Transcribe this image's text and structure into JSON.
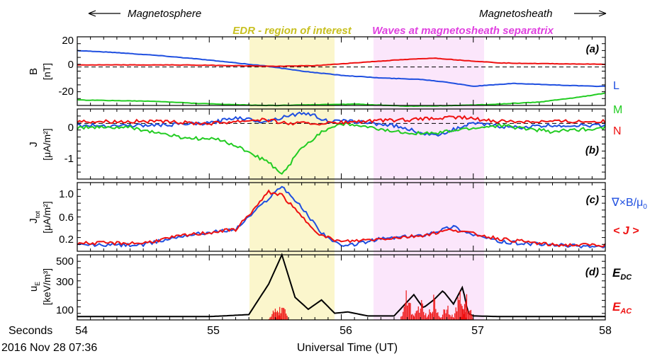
{
  "header": {
    "left_label": "Magnetosphere",
    "right_label": "Magnetosheath",
    "edr_label": "EDR - region of interest",
    "waves_label": "Waves at magnetosheath separatrix"
  },
  "colors": {
    "L": "#1f4fe0",
    "M": "#22cc22",
    "N": "#ee1111",
    "edr_fill": "#fbf6cc",
    "edr_text": "#c8c020",
    "waves_fill": "#fbe6fb",
    "waves_text": "#e040e0",
    "black": "#000000"
  },
  "panels": [
    {
      "id": "a",
      "tag": "(a)",
      "ylabel": "B",
      "yunits": "[nT]",
      "ticks": [
        "20",
        "0",
        "-20"
      ]
    },
    {
      "id": "b",
      "tag": "(b)",
      "ylabel": "J",
      "yunits": "[μA/m²]",
      "ticks": [
        "0",
        "-1"
      ]
    },
    {
      "id": "c",
      "tag": "(c)",
      "ylabel": "J",
      "ylabel_sub": "tot",
      "yunits": "[μA/m²]",
      "ticks": [
        "1.0",
        "0.6",
        "0.2"
      ]
    },
    {
      "id": "d",
      "tag": "(d)",
      "ylabel": "u",
      "ylabel_sub": "E",
      "yunits": "[keV/m³]",
      "ticks": [
        "500",
        "300",
        "100"
      ]
    }
  ],
  "legend": {
    "a": [
      "L",
      "M",
      "N"
    ],
    "c_curl": "∇×B/μ",
    "c_curl_sub": "0",
    "c_avg": "< J >",
    "d_dc": "E",
    "d_dc_sub": "DC",
    "d_ac": "E",
    "d_ac_sub": "AC"
  },
  "xaxis": {
    "seconds_label": "Seconds",
    "ticks": [
      "54",
      "55",
      "56",
      "57",
      "58"
    ],
    "date_label": "2016 Nov 28 07:36",
    "title": "Universal Time (UT)"
  },
  "chart_data": [
    {
      "type": "line",
      "panel": "a",
      "x_range": [
        54,
        58
      ],
      "ylim": [
        -28,
        22
      ],
      "series": [
        {
          "name": "L",
          "x": [
            54,
            54.3,
            54.6,
            54.9,
            55.2,
            55.45,
            55.7,
            56.0,
            56.3,
            56.6,
            56.8,
            57.0,
            57.3,
            57.6,
            57.9,
            58
          ],
          "y": [
            12,
            10.5,
            8.5,
            6,
            3,
            0.5,
            -3,
            -6,
            -8,
            -9,
            -11,
            -14,
            -12,
            -13,
            -14,
            -14
          ]
        },
        {
          "name": "M",
          "x": [
            54,
            54.3,
            54.6,
            54.9,
            55.2,
            55.5,
            55.8,
            56.1,
            56.5,
            56.9,
            57.2,
            57.5,
            57.8,
            58
          ],
          "y": [
            -24,
            -24.5,
            -25,
            -26.5,
            -27.5,
            -28,
            -27.5,
            -27,
            -28.5,
            -28,
            -27,
            -25.5,
            -22,
            -19
          ]
        },
        {
          "name": "N",
          "x": [
            54,
            54.4,
            54.8,
            55.2,
            55.5,
            55.8,
            56.1,
            56.4,
            56.7,
            56.9,
            57.2,
            57.5,
            58
          ],
          "y": [
            1.5,
            1.5,
            1.5,
            1.0,
            0.5,
            1,
            3,
            5,
            6.5,
            5,
            3,
            2.5,
            2
          ]
        }
      ],
      "reference_line": 0
    },
    {
      "type": "line",
      "panel": "b",
      "x_range": [
        54,
        58
      ],
      "ylim": [
        -1.35,
        0.35
      ],
      "series": [
        {
          "name": "L",
          "x": [
            54,
            54.5,
            55.0,
            55.2,
            55.4,
            55.5,
            55.6,
            55.75,
            55.9,
            56.1,
            56.4,
            56.7,
            57.0,
            57.3,
            57.6,
            58
          ],
          "y": [
            -0.05,
            -0.05,
            0.0,
            0.15,
            0.05,
            0.1,
            0.2,
            0.25,
            0.05,
            0.05,
            -0.05,
            -0.3,
            0.0,
            -0.1,
            -0.05,
            -0.05
          ]
        },
        {
          "name": "M",
          "x": [
            54,
            54.4,
            54.8,
            55.1,
            55.3,
            55.45,
            55.55,
            55.7,
            55.85,
            56.0,
            56.4,
            56.7,
            56.9,
            57.2,
            57.6,
            58
          ],
          "y": [
            -0.1,
            -0.1,
            -0.35,
            -0.4,
            -0.7,
            -0.95,
            -1.25,
            -0.6,
            -0.2,
            0.0,
            -0.2,
            -0.25,
            -0.15,
            -0.05,
            -0.2,
            -0.1
          ]
        },
        {
          "name": "N",
          "x": [
            54,
            54.5,
            55.0,
            55.4,
            55.6,
            55.9,
            56.2,
            56.6,
            56.9,
            57.2,
            57.6,
            58
          ],
          "y": [
            0.05,
            0.05,
            0.0,
            0.1,
            0.0,
            0.0,
            0.05,
            0.1,
            0.15,
            0.05,
            0.05,
            0.05
          ]
        }
      ],
      "reference_line": 0
    },
    {
      "type": "line",
      "panel": "c",
      "x_range": [
        54,
        58
      ],
      "ylim": [
        0.05,
        1.15
      ],
      "series": [
        {
          "name": "∇×B/μ0",
          "x": [
            54,
            54.5,
            54.8,
            55.0,
            55.2,
            55.35,
            55.45,
            55.55,
            55.7,
            55.85,
            56.0,
            56.3,
            56.6,
            56.85,
            56.95,
            57.2,
            57.6,
            58
          ],
          "y": [
            0.15,
            0.15,
            0.3,
            0.35,
            0.4,
            0.7,
            0.9,
            1.1,
            0.75,
            0.35,
            0.12,
            0.25,
            0.3,
            0.45,
            0.35,
            0.2,
            0.15,
            0.12
          ]
        },
        {
          "name": "< J >",
          "x": [
            54,
            54.5,
            54.8,
            55.0,
            55.2,
            55.35,
            55.45,
            55.55,
            55.7,
            55.85,
            56.0,
            56.3,
            56.6,
            56.85,
            56.95,
            57.2,
            57.6,
            58
          ],
          "y": [
            0.18,
            0.18,
            0.3,
            0.35,
            0.4,
            0.75,
            1.0,
            0.95,
            0.6,
            0.3,
            0.2,
            0.25,
            0.3,
            0.4,
            0.35,
            0.25,
            0.15,
            0.15
          ]
        }
      ]
    },
    {
      "type": "line",
      "panel": "d",
      "x_range": [
        54,
        58
      ],
      "ylim": [
        30,
        520
      ],
      "series": [
        {
          "name": "E_DC",
          "x": [
            54,
            54.5,
            55.0,
            55.3,
            55.45,
            55.55,
            55.65,
            55.75,
            55.85,
            55.95,
            56.05,
            56.2,
            56.4,
            56.55,
            56.62,
            56.7,
            56.77,
            56.85,
            56.92,
            56.96,
            57.0,
            57.2,
            57.6,
            58
          ],
          "y": [
            55,
            55,
            55,
            70,
            300,
            520,
            200,
            110,
            180,
            80,
            90,
            60,
            60,
            220,
            120,
            180,
            250,
            150,
            280,
            80,
            60,
            55,
            55,
            55
          ]
        },
        {
          "name": "E_AC",
          "x": [
            55.5,
            55.55,
            56.5,
            56.6,
            56.7,
            56.8,
            56.9,
            56.95
          ],
          "y": [
            120,
            150,
            250,
            180,
            200,
            170,
            230,
            200
          ]
        }
      ]
    }
  ]
}
